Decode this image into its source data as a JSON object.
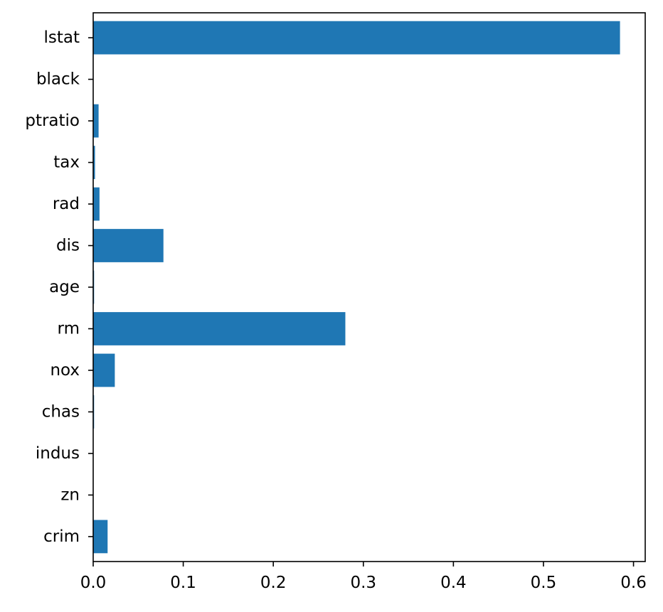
{
  "chart_data": {
    "type": "bar",
    "orientation": "horizontal",
    "title": "",
    "xlabel": "",
    "ylabel": "",
    "categories": [
      "crim",
      "zn",
      "indus",
      "chas",
      "nox",
      "rm",
      "age",
      "dis",
      "rad",
      "tax",
      "ptratio",
      "black",
      "lstat"
    ],
    "values": [
      0.016,
      0.0,
      0.0,
      0.001,
      0.024,
      0.28,
      0.001,
      0.078,
      0.007,
      0.002,
      0.006,
      0.0,
      0.585
    ],
    "xlim": [
      0,
      0.613
    ],
    "x_ticks": [
      0.0,
      0.1,
      0.2,
      0.3,
      0.4,
      0.5,
      0.6
    ],
    "x_tick_labels": [
      "0.0",
      "0.1",
      "0.2",
      "0.3",
      "0.4",
      "0.5",
      "0.6"
    ],
    "grid": false,
    "legend": "none",
    "bar_color": "#1f77b4"
  }
}
